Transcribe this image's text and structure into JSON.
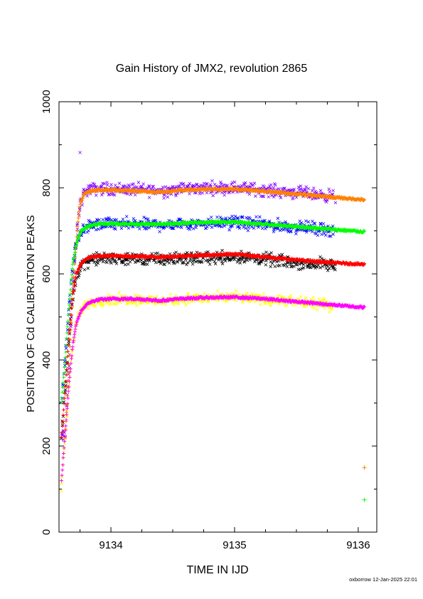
{
  "chart_data": {
    "type": "scatter",
    "title": "Gain History of JMX2, revolution 2865",
    "xlabel": "TIME IN IJD",
    "ylabel": "POSITION OF Cd CALIBRATION PEAKS",
    "xlim": [
      9133.58,
      9136.15
    ],
    "ylim": [
      0,
      1000
    ],
    "x_ticks": [
      "9134",
      "9135",
      "9136"
    ],
    "y_ticks": [
      "0",
      "200",
      "400",
      "600",
      "800",
      "1000"
    ],
    "grid": false,
    "series": [
      {
        "color": "#ff8000",
        "marker": "+",
        "x": [
          9133.63,
          9133.65,
          9133.67,
          9133.69,
          9133.71,
          9133.73,
          9133.75,
          9133.78,
          9133.82,
          9133.9,
          9134.0,
          9134.2,
          9134.4,
          9134.6,
          9134.8,
          9135.0,
          9135.2,
          9135.4,
          9135.6,
          9135.8,
          9136.05
        ],
        "values": [
          220,
          330,
          440,
          550,
          640,
          710,
          760,
          785,
          792,
          795,
          795,
          793,
          790,
          795,
          797,
          797,
          793,
          788,
          783,
          778,
          772
        ]
      },
      {
        "color": "#00ff00",
        "marker": "+",
        "x": [
          9133.6,
          9133.63,
          9133.66,
          9133.69,
          9133.72,
          9133.76,
          9133.82,
          9133.9,
          9134.0,
          9134.2,
          9134.4,
          9134.6,
          9134.8,
          9135.0,
          9135.2,
          9135.4,
          9135.6,
          9135.8,
          9136.05
        ],
        "values": [
          300,
          400,
          520,
          620,
          670,
          700,
          712,
          716,
          717,
          716,
          715,
          718,
          720,
          721,
          716,
          712,
          708,
          703,
          698
        ]
      },
      {
        "color": "#ff0000",
        "marker": "+",
        "x": [
          9133.6,
          9133.63,
          9133.66,
          9133.69,
          9133.72,
          9133.76,
          9133.82,
          9133.9,
          9134.0,
          9134.2,
          9134.4,
          9134.6,
          9134.8,
          9135.0,
          9135.2,
          9135.4,
          9135.6,
          9135.8,
          9136.05
        ],
        "values": [
          220,
          330,
          450,
          550,
          600,
          625,
          638,
          641,
          642,
          641,
          639,
          642,
          644,
          646,
          641,
          635,
          630,
          626,
          622
        ]
      },
      {
        "color": "#ff00ff",
        "marker": "+",
        "x": [
          9133.6,
          9133.63,
          9133.66,
          9133.69,
          9133.72,
          9133.76,
          9133.82,
          9133.9,
          9134.0,
          9134.2,
          9134.4,
          9134.6,
          9134.8,
          9135.0,
          9135.2,
          9135.4,
          9135.6,
          9135.8,
          9136.05
        ],
        "values": [
          120,
          230,
          340,
          430,
          485,
          515,
          533,
          540,
          542,
          542,
          538,
          543,
          545,
          546,
          543,
          538,
          533,
          528,
          522
        ]
      }
    ],
    "scatter_series": [
      {
        "color": "#8000ff",
        "center": 800,
        "spread": 14
      },
      {
        "color": "#0000ff",
        "center": 720,
        "spread": 14
      },
      {
        "color": "#000000",
        "center": 640,
        "spread": 14
      },
      {
        "color": "#ffff00",
        "center": 545,
        "spread": 12
      }
    ],
    "outliers": [
      {
        "color": "#8000ff",
        "marker": "x",
        "x": 9133.75,
        "y": 882
      },
      {
        "color": "#ff8000",
        "marker": "+",
        "x": 9136.05,
        "y": 150
      },
      {
        "color": "#00ff00",
        "marker": "+",
        "x": 9136.05,
        "y": 75
      },
      {
        "color": "#ffff00",
        "marker": "x",
        "x": 9133.6,
        "y": 95
      }
    ]
  },
  "footer": "oxborrow 12-Jan-2025 22:01"
}
